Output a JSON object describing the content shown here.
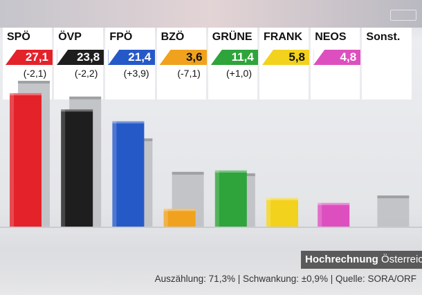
{
  "chart_data": {
    "type": "bar",
    "categories": [
      "SPÖ",
      "ÖVP",
      "FPÖ",
      "BZÖ",
      "GRÜNE",
      "FRANK",
      "NEOS",
      "Sonst."
    ],
    "series": [
      {
        "values": [
          27.1,
          23.8,
          21.4,
          3.6,
          11.4,
          5.8,
          4.8,
          null
        ]
      },
      {
        "values": [
          29.2,
          26.0,
          17.5,
          10.7,
          10.4,
          null,
          null,
          5.9
        ]
      }
    ],
    "value_labels": [
      "27,1",
      "23,8",
      "21,4",
      "3,6",
      "11,4",
      "5,8",
      "4,8",
      ""
    ],
    "change_labels": [
      "(-2,1)",
      "(-2,2)",
      "(+3,9)",
      "(-7,1)",
      "(+1,0)",
      "",
      "",
      ""
    ],
    "colors": [
      "#e3222a",
      "#1e1e1e",
      "#2659c8",
      "#f0a21e",
      "#2ea43a",
      "#f2d21c",
      "#dd4fbf",
      "#bdbdbd"
    ],
    "ghost_color": "#bfc0c3",
    "ylim": [
      0,
      32
    ],
    "legend": "none"
  },
  "footer": {
    "hoch_bold": "Hochrechnung",
    "hoch_rest": "Österreich",
    "note": "Auszählung: 71,3% | Schwankung: ±0,9% | Quelle: SORA/ORF"
  }
}
